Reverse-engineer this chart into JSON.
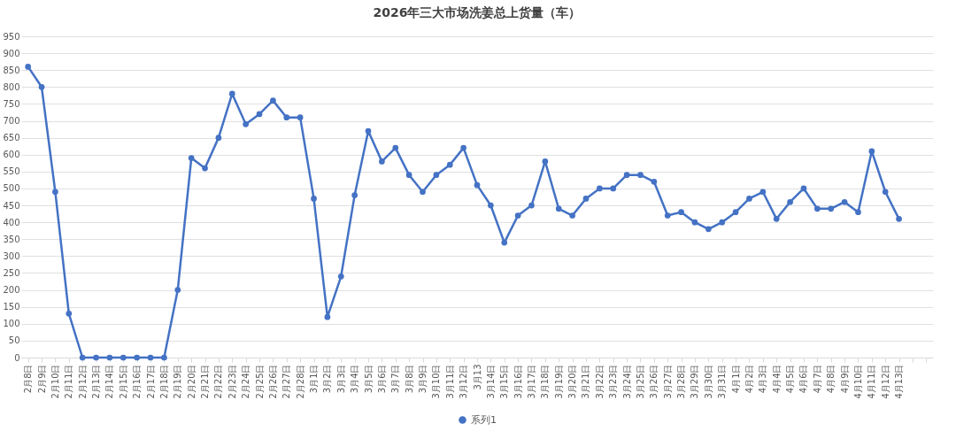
{
  "chart_data": {
    "type": "line",
    "title": "2026年三大市场洗姜总上货量（车）",
    "categories": [
      "2月8日",
      "2月9日",
      "2月10日",
      "2月11日",
      "2月12日",
      "2月13日",
      "2月14日",
      "2月15日",
      "2月16日",
      "2月17日",
      "2月18日",
      "2月19日",
      "2月20日",
      "2月21日",
      "2月22日",
      "2月23日",
      "2月24日",
      "2月25日",
      "2月26日",
      "2月27日",
      "2月28日",
      "3月1日",
      "3月2日",
      "3月3日",
      "3月4日",
      "3月5日",
      "3月6日",
      "3月7日",
      "3月8日",
      "3月9日",
      "3月10日",
      "3月11日",
      "3月12日",
      "3月13",
      "3月14日",
      "3月15日",
      "3月16日",
      "3月17日",
      "3月18日",
      "3月19日",
      "3月20日",
      "3月21日",
      "3月22日",
      "3月23日",
      "3月24日",
      "3月25日",
      "3月26日",
      "3月27日",
      "3月28日",
      "3月29日",
      "3月30日",
      "3月31日",
      "4月1日",
      "4月2日",
      "4月3日",
      "4月4日",
      "4月5日",
      "4月6日",
      "4月7日",
      "4月8日",
      "4月9日",
      "4月10日",
      "4月11日",
      "4月12日",
      "4月13日",
      null,
      null
    ],
    "series": [
      {
        "name": "系列1",
        "color": "#4472c4",
        "values": [
          860,
          800,
          490,
          130,
          0,
          0,
          0,
          0,
          0,
          0,
          0,
          200,
          590,
          560,
          650,
          780,
          690,
          720,
          760,
          710,
          710,
          470,
          120,
          240,
          480,
          670,
          580,
          620,
          540,
          490,
          540,
          570,
          620,
          510,
          450,
          340,
          420,
          450,
          580,
          440,
          420,
          470,
          500,
          500,
          540,
          540,
          520,
          420,
          430,
          400,
          380,
          400,
          430,
          470,
          490,
          410,
          460,
          500,
          440,
          440,
          460,
          430,
          610,
          490,
          410,
          null,
          null
        ]
      }
    ],
    "ylim": [
      0,
      950
    ],
    "yticks": [
      0,
      50,
      100,
      150,
      200,
      250,
      300,
      350,
      400,
      450,
      500,
      550,
      600,
      650,
      700,
      750,
      800,
      850,
      900,
      950
    ],
    "grid": "y",
    "legend": "bottom",
    "marker": "circle",
    "line_style": "solid"
  }
}
